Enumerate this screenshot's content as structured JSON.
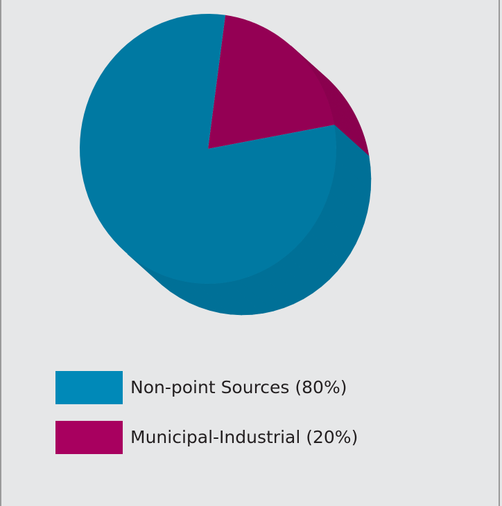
{
  "chart_data": {
    "type": "pie",
    "categories": [
      "Non-point Sources (80%)",
      "Municipal-Industrial (20%)"
    ],
    "values": [
      80,
      20
    ],
    "colors": [
      "#0089b8",
      "#a8005f"
    ]
  }
}
